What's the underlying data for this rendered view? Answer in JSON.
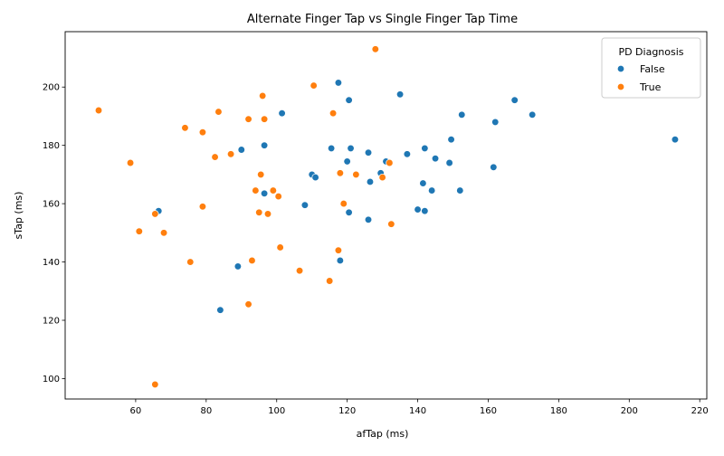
{
  "chart_data": {
    "type": "scatter",
    "title": "Alternate Finger Tap vs Single Finger Tap Time",
    "xlabel": "afTap (ms)",
    "ylabel": "sTap (ms)",
    "xlim": [
      40,
      222
    ],
    "ylim": [
      93,
      219
    ],
    "xticks": [
      60,
      80,
      100,
      120,
      140,
      160,
      180,
      200,
      220
    ],
    "yticks": [
      100,
      120,
      140,
      160,
      180,
      200
    ],
    "grid": false,
    "legend": {
      "title": "PD Diagnosis",
      "position": "top-right"
    },
    "series": [
      {
        "name": "False",
        "color": "#1f77b4",
        "points": [
          [
            117.5,
            201.5
          ],
          [
            120.5,
            195.5
          ],
          [
            135,
            197.5
          ],
          [
            167.5,
            195.5
          ],
          [
            101.5,
            191
          ],
          [
            152.5,
            190.5
          ],
          [
            172.5,
            190.5
          ],
          [
            162,
            188
          ],
          [
            96.5,
            180
          ],
          [
            149.5,
            182
          ],
          [
            213,
            182
          ],
          [
            90,
            178.5
          ],
          [
            115.5,
            179
          ],
          [
            121,
            179
          ],
          [
            126,
            177.5
          ],
          [
            137,
            177
          ],
          [
            142,
            179
          ],
          [
            145,
            175.5
          ],
          [
            120,
            174.5
          ],
          [
            131,
            174.5
          ],
          [
            149,
            174
          ],
          [
            161.5,
            172.5
          ],
          [
            110,
            170
          ],
          [
            111,
            169
          ],
          [
            129.5,
            170.5
          ],
          [
            126.5,
            167.5
          ],
          [
            141.5,
            167
          ],
          [
            96.5,
            163.5
          ],
          [
            144,
            164.5
          ],
          [
            152,
            164.5
          ],
          [
            66.5,
            157.5
          ],
          [
            108,
            159.5
          ],
          [
            120.5,
            157
          ],
          [
            140,
            158
          ],
          [
            142,
            157.5
          ],
          [
            126,
            154.5
          ],
          [
            89,
            138.5
          ],
          [
            118,
            140.5
          ],
          [
            84,
            123.5
          ]
        ]
      },
      {
        "name": "True",
        "color": "#ff7f0e",
        "points": [
          [
            128,
            213
          ],
          [
            110.5,
            200.5
          ],
          [
            96,
            197
          ],
          [
            49.5,
            192
          ],
          [
            83.5,
            191.5
          ],
          [
            92,
            189
          ],
          [
            96.5,
            189
          ],
          [
            116,
            191
          ],
          [
            74,
            186
          ],
          [
            79,
            184.5
          ],
          [
            82.5,
            176
          ],
          [
            87,
            177
          ],
          [
            58.5,
            174
          ],
          [
            95.5,
            170
          ],
          [
            118,
            170.5
          ],
          [
            122.5,
            170
          ],
          [
            130,
            169
          ],
          [
            132,
            174
          ],
          [
            94,
            164.5
          ],
          [
            99,
            164.5
          ],
          [
            100.5,
            162.5
          ],
          [
            119,
            160
          ],
          [
            79,
            159
          ],
          [
            95,
            157
          ],
          [
            97.5,
            156.5
          ],
          [
            65.5,
            156.5
          ],
          [
            61,
            150.5
          ],
          [
            68,
            150
          ],
          [
            132.5,
            153
          ],
          [
            101,
            145
          ],
          [
            117.5,
            144
          ],
          [
            75.5,
            140
          ],
          [
            93,
            140.5
          ],
          [
            106.5,
            137
          ],
          [
            115,
            133.5
          ],
          [
            92,
            125.5
          ],
          [
            65.5,
            98
          ]
        ]
      }
    ]
  }
}
